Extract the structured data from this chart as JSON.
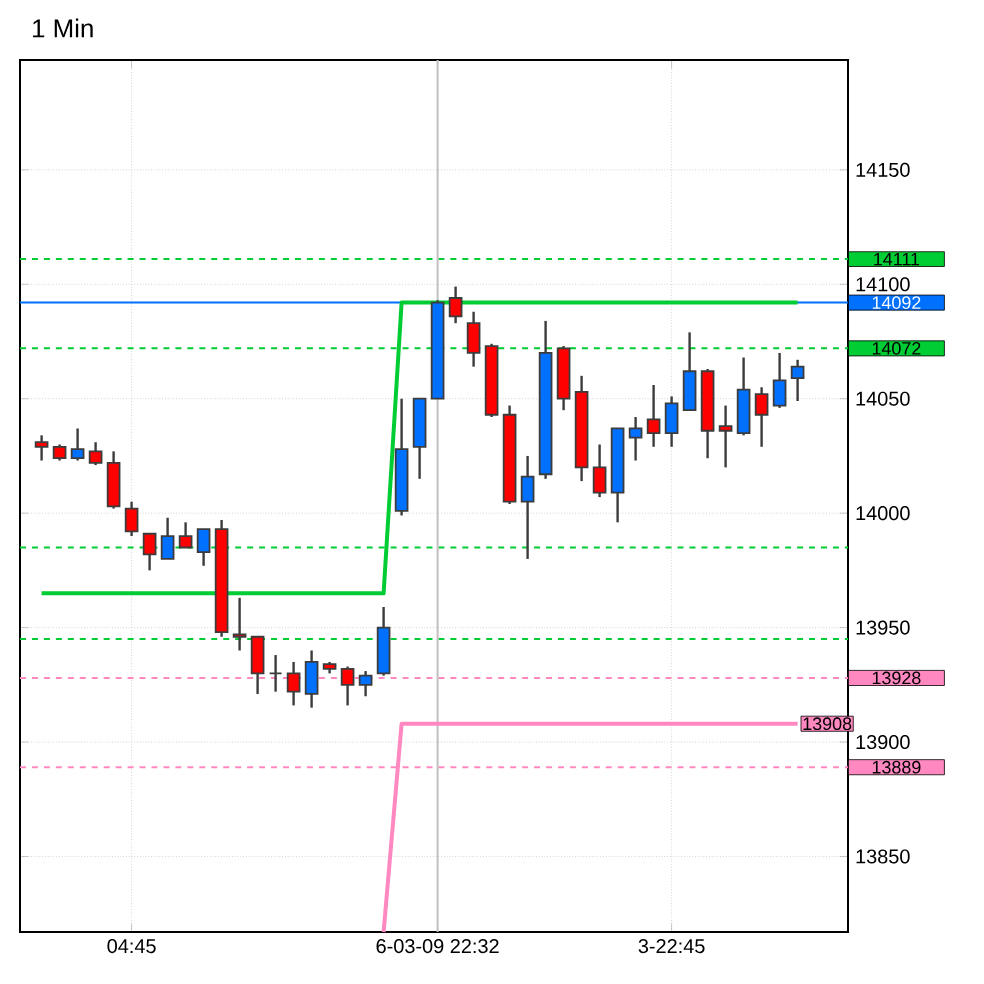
{
  "chart_data": {
    "type": "candlestick",
    "title": "1 Min",
    "categories": [
      null,
      null,
      null,
      null,
      null,
      "04:45",
      null,
      null,
      null,
      null,
      null,
      null,
      null,
      null,
      null,
      null,
      null,
      null,
      null,
      null,
      null,
      null,
      "6-03-09 22:32",
      null,
      null,
      null,
      null,
      null,
      null,
      null,
      null,
      null,
      null,
      null,
      null,
      "3-22:45",
      null,
      null,
      null,
      null,
      null,
      null,
      null
    ],
    "ohlc": [
      [
        14031,
        14034,
        14023,
        14029
      ],
      [
        14029,
        14030,
        14023,
        14024
      ],
      [
        14024,
        14037,
        14023,
        14028
      ],
      [
        14027,
        14031,
        14021,
        14022
      ],
      [
        14022,
        14027,
        14002,
        14003
      ],
      [
        14002,
        14005,
        13990,
        13992
      ],
      [
        13991,
        13991,
        13975,
        13982
      ],
      [
        13980,
        13998,
        13980,
        13990
      ],
      [
        13990,
        13996,
        13985,
        13985
      ],
      [
        13983,
        13993,
        13977,
        13993
      ],
      [
        13993,
        13997,
        13946,
        13948
      ],
      [
        13947,
        13963,
        13940,
        13946
      ],
      [
        13946,
        13946,
        13921,
        13930
      ],
      [
        13930,
        13938,
        13922,
        13930
      ],
      [
        13930,
        13935,
        13916,
        13922
      ],
      [
        13921,
        13940,
        13915,
        13935
      ],
      [
        13934,
        13935,
        13930,
        13932
      ],
      [
        13932,
        13933,
        13916,
        13925
      ],
      [
        13925,
        13931,
        13920,
        13929
      ],
      [
        13930,
        13959,
        13929,
        13950
      ],
      [
        14001,
        14050,
        13999,
        14028
      ],
      [
        14029,
        14050,
        14015,
        14050
      ],
      [
        14050,
        14093,
        14050,
        14092
      ],
      [
        14094,
        14099,
        14083,
        14086
      ],
      [
        14083,
        14088,
        14064,
        14070
      ],
      [
        14073,
        14074,
        14042,
        14043
      ],
      [
        14043,
        14047,
        14004,
        14005
      ],
      [
        14005,
        14025,
        13980,
        14016
      ],
      [
        14017,
        14084,
        14015,
        14070
      ],
      [
        14072,
        14073,
        14045,
        14050
      ],
      [
        14053,
        14060,
        14014,
        14020
      ],
      [
        14020,
        14030,
        14007,
        14009
      ],
      [
        14009,
        14037,
        13996,
        14037
      ],
      [
        14033,
        14042,
        14023,
        14037
      ],
      [
        14041,
        14056,
        14029,
        14035
      ],
      [
        14035,
        14051,
        14029,
        14048
      ],
      [
        14045,
        14079,
        14045,
        14062
      ],
      [
        14062,
        14063,
        14024,
        14036
      ],
      [
        14038,
        14047,
        14020,
        14036
      ],
      [
        14035,
        14068,
        14034,
        14054
      ],
      [
        14052,
        14055,
        14029,
        14043
      ],
      [
        14047,
        14070,
        14046,
        14058
      ],
      [
        14059,
        14067,
        14049,
        14064
      ]
    ],
    "series": [
      {
        "type": "line",
        "color": "#00cc33",
        "values": [
          13965,
          13965,
          13965,
          13965,
          13965,
          13965,
          13965,
          13965,
          13965,
          13965,
          13965,
          13965,
          13965,
          13965,
          13965,
          13965,
          13965,
          13965,
          13965,
          13965,
          14092,
          14092,
          14092,
          14092,
          14092,
          14092,
          14092,
          14092,
          14092,
          14092,
          14092,
          14092,
          14092,
          14092,
          14092,
          14092,
          14092,
          14092,
          14092,
          14092,
          14092,
          14092,
          14092
        ]
      },
      {
        "type": "line",
        "color": "#ff88c0",
        "values": [
          null,
          null,
          null,
          null,
          null,
          null,
          null,
          null,
          null,
          null,
          null,
          null,
          null,
          null,
          null,
          null,
          null,
          null,
          null,
          13817,
          13908,
          13908,
          13908,
          13908,
          13908,
          13908,
          13908,
          13908,
          13908,
          13908,
          13908,
          13908,
          13908,
          13908,
          13908,
          13908,
          13908,
          13908,
          13908,
          13908,
          13908,
          13908,
          13908
        ],
        "value_labels": [
          null,
          null,
          null,
          null,
          null,
          null,
          null,
          null,
          null,
          null,
          null,
          null,
          null,
          null,
          null,
          null,
          null,
          null,
          null,
          null,
          null,
          null,
          null,
          null,
          null,
          null,
          null,
          null,
          null,
          null,
          null,
          null,
          null,
          null,
          null,
          null,
          null,
          null,
          null,
          null,
          null,
          null,
          "13908"
        ]
      }
    ],
    "ylim": [
      13817,
      14198
    ],
    "yticks": [
      13850,
      13900,
      13950,
      14000,
      14050,
      14100,
      14150
    ],
    "ref_lines": [
      {
        "axis": "y",
        "value": 14111,
        "label": "14111",
        "color": "#00cc33",
        "line_style": "dashed"
      },
      {
        "axis": "y",
        "value": 14092,
        "label": "14092",
        "color": "#0070ff",
        "line_style": "solid"
      },
      {
        "axis": "y",
        "value": 14072,
        "label": "14072",
        "color": "#00cc33",
        "line_style": "dashed"
      },
      {
        "axis": "y",
        "value": 13985,
        "color": "#00cc33",
        "line_style": "dashed"
      },
      {
        "axis": "y",
        "value": 13945,
        "color": "#00cc33",
        "line_style": "dashed"
      },
      {
        "axis": "y",
        "value": 13928,
        "label": "13928",
        "color": "#ff88c0",
        "line_style": "dashed"
      },
      {
        "axis": "y",
        "value": 13889,
        "label": "13889",
        "color": "#ff88c0",
        "line_style": "dashed"
      },
      {
        "axis": "x",
        "value": "6-03-09 22:32",
        "color": "#c0c0c0",
        "line_style": "solid"
      }
    ],
    "grid": true
  }
}
